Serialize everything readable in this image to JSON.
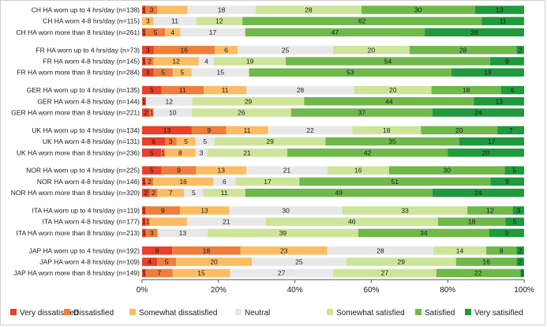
{
  "chart_data": {
    "type": "bar",
    "orientation": "horizontal",
    "stacked": "percent",
    "title": "",
    "xlabel": "",
    "ylabel": "",
    "xlim": [
      0,
      100
    ],
    "x_ticks": [
      "0%",
      "20%",
      "40%",
      "60%",
      "80%",
      "100%"
    ],
    "grid": false,
    "legend_position": "bottom",
    "series": [
      {
        "name": "Very dissatisified",
        "color": "#e8402a"
      },
      {
        "name": "Dissatisfied",
        "color": "#ef7d3c"
      },
      {
        "name": "Somewhat dissatisfied",
        "color": "#fbbd63"
      },
      {
        "name": "Neutral",
        "color": "#e8e8e8"
      },
      {
        "name": "Somewhat satisfied",
        "color": "#cde59a"
      },
      {
        "name": "Satisfied",
        "color": "#6fb84a"
      },
      {
        "name": "Very satisified",
        "color": "#1f9a3c"
      }
    ],
    "groups": [
      {
        "rows": [
          {
            "label": "CH HA worn up to 4 hrs/day (n=138)",
            "values": [
              1,
              3,
              8,
              18,
              28,
              30,
              13
            ],
            "labels": [
              "1",
              "3",
              "",
              "18",
              "28",
              "30",
              "13"
            ]
          },
          {
            "label": "CH HA worn 4-8 hrs/day (n=115)",
            "values": [
              0,
              0,
              3,
              11,
              12,
              62,
              11
            ],
            "labels": [
              "",
              "",
              "3",
              "11",
              "12",
              "62",
              "11"
            ]
          },
          {
            "label": "CH HA worn more than 8 hrs/day (n=261)",
            "values": [
              1,
              5,
              4,
              17,
              0,
              47,
              26
            ],
            "labels": [
              "1",
              "5",
              "4",
              "17",
              "",
              "47",
              "26"
            ]
          }
        ]
      },
      {
        "rows": [
          {
            "label": "FR HA worn up to 4 hrs/day (n=73)",
            "values": [
              3,
              16,
              6,
              25,
              20,
              28,
              2
            ],
            "labels": [
              "3",
              "16",
              "6",
              "25",
              "20",
              "28",
              "2"
            ]
          },
          {
            "label": "FR HA worn 4-8 hrs/day (n=145)",
            "values": [
              1,
              2,
              12,
              4,
              19,
              54,
              9
            ],
            "labels": [
              "1",
              "2",
              "12",
              "4",
              "19",
              "54",
              "9"
            ]
          },
          {
            "label": "FR HA worn more than 8 hrs/day (n=284)",
            "values": [
              3,
              5,
              5,
              15,
              0,
              53,
              19
            ],
            "labels": [
              "3",
              "5",
              "5",
              "15",
              "",
              "53",
              "19"
            ]
          }
        ]
      },
      {
        "rows": [
          {
            "label": "GER HA worn up to 4 hrs/day (n=135)",
            "values": [
              5,
              11,
              11,
              28,
              20,
              18,
              6
            ],
            "labels": [
              "5",
              "11",
              "11",
              "28",
              "20",
              "18",
              "6"
            ]
          },
          {
            "label": "GER HA worn 4-8 hrs/day (n=144)",
            "values": [
              1,
              0,
              0,
              12,
              29,
              44,
              13
            ],
            "labels": [
              "1",
              "",
              "",
              "12",
              "29",
              "44",
              "13"
            ]
          },
          {
            "label": "GER HA worn more than 8 hrs/day (n=221)",
            "values": [
              2,
              1,
              0,
              10,
              26,
              37,
              24
            ],
            "labels": [
              "2",
              "1",
              "",
              "10",
              "26",
              "37",
              "24"
            ]
          }
        ]
      },
      {
        "rows": [
          {
            "label": "UK HA worn up to 4 hrs/day (n=134)",
            "values": [
              13,
              9,
              11,
              22,
              18,
              20,
              7
            ],
            "labels": [
              "13",
              "9",
              "11",
              "22",
              "18",
              "20",
              "7"
            ]
          },
          {
            "label": "UK HA worn 4-8 hrs/day (n=131)",
            "values": [
              6,
              3,
              5,
              5,
              29,
              35,
              17
            ],
            "labels": [
              "6",
              "3",
              "5",
              "5",
              "29",
              "35",
              "17"
            ]
          },
          {
            "label": "UK HA worn more than 8 hrs/day (n=236)",
            "values": [
              5,
              1,
              8,
              3,
              21,
              42,
              20
            ],
            "labels": [
              "5",
              "1",
              "8",
              "3",
              "21",
              "42",
              "20"
            ]
          }
        ]
      },
      {
        "rows": [
          {
            "label": "NOR HA worn up to 4 hrs/day (n=225)",
            "values": [
              5,
              9,
              13,
              21,
              16,
              30,
              5
            ],
            "labels": [
              "5",
              "9",
              "13",
              "21",
              "16",
              "30",
              "5"
            ]
          },
          {
            "label": "NOR HA worn 4-8 hrs/day (n=146)",
            "values": [
              1,
              2,
              16,
              6,
              17,
              51,
              9
            ],
            "labels": [
              "1",
              "2",
              "16",
              "6",
              "17",
              "51",
              "9"
            ]
          },
          {
            "label": "NOR HA worn more than 8 hrs/day (n=320)",
            "values": [
              2,
              2,
              7,
              5,
              11,
              49,
              24
            ],
            "labels": [
              "2",
              "2",
              "7",
              "5",
              "11",
              "49",
              "24"
            ]
          }
        ]
      },
      {
        "rows": [
          {
            "label": "ITA HA worn up to 4 hrs/day (n=119)",
            "values": [
              1,
              9,
              13,
              30,
              33,
              12,
              3
            ],
            "labels": [
              "1",
              "9",
              "13",
              "30",
              "33",
              "12",
              "3"
            ]
          },
          {
            "label": "ITA HA worn 4-8 hrs/day (n=177)",
            "values": [
              1,
              1,
              10,
              21,
              46,
              18,
              5
            ],
            "labels": [
              "1",
              "1",
              "",
              "21",
              "46",
              "18",
              "5"
            ]
          },
          {
            "label": "ITA HA worn more than 8 hrs/day (n=213)",
            "values": [
              1,
              3,
              0,
              13,
              39,
              34,
              9
            ],
            "labels": [
              "1",
              "3",
              "",
              "13",
              "39",
              "34",
              "9"
            ]
          }
        ]
      },
      {
        "rows": [
          {
            "label": "JAP HA worn up to 4 hrs/day (n=192)",
            "values": [
              8,
              18,
              23,
              28,
              14,
              8,
              2
            ],
            "labels": [
              "8",
              "18",
              "23",
              "28",
              "14",
              "8",
              "2"
            ]
          },
          {
            "label": "JAP HA worn 4-8 hrs/day (n=109)",
            "values": [
              4,
              5,
              20,
              25,
              29,
              16,
              2
            ],
            "labels": [
              "4",
              "5",
              "20",
              "25",
              "29",
              "16",
              "2"
            ]
          },
          {
            "label": "JAP HA worn more than 8 hrs/day (n=149)",
            "values": [
              1,
              7,
              15,
              27,
              27,
              22,
              1
            ],
            "labels": [
              "1",
              "7",
              "15",
              "27",
              "27",
              "22",
              "1"
            ]
          }
        ]
      }
    ]
  }
}
